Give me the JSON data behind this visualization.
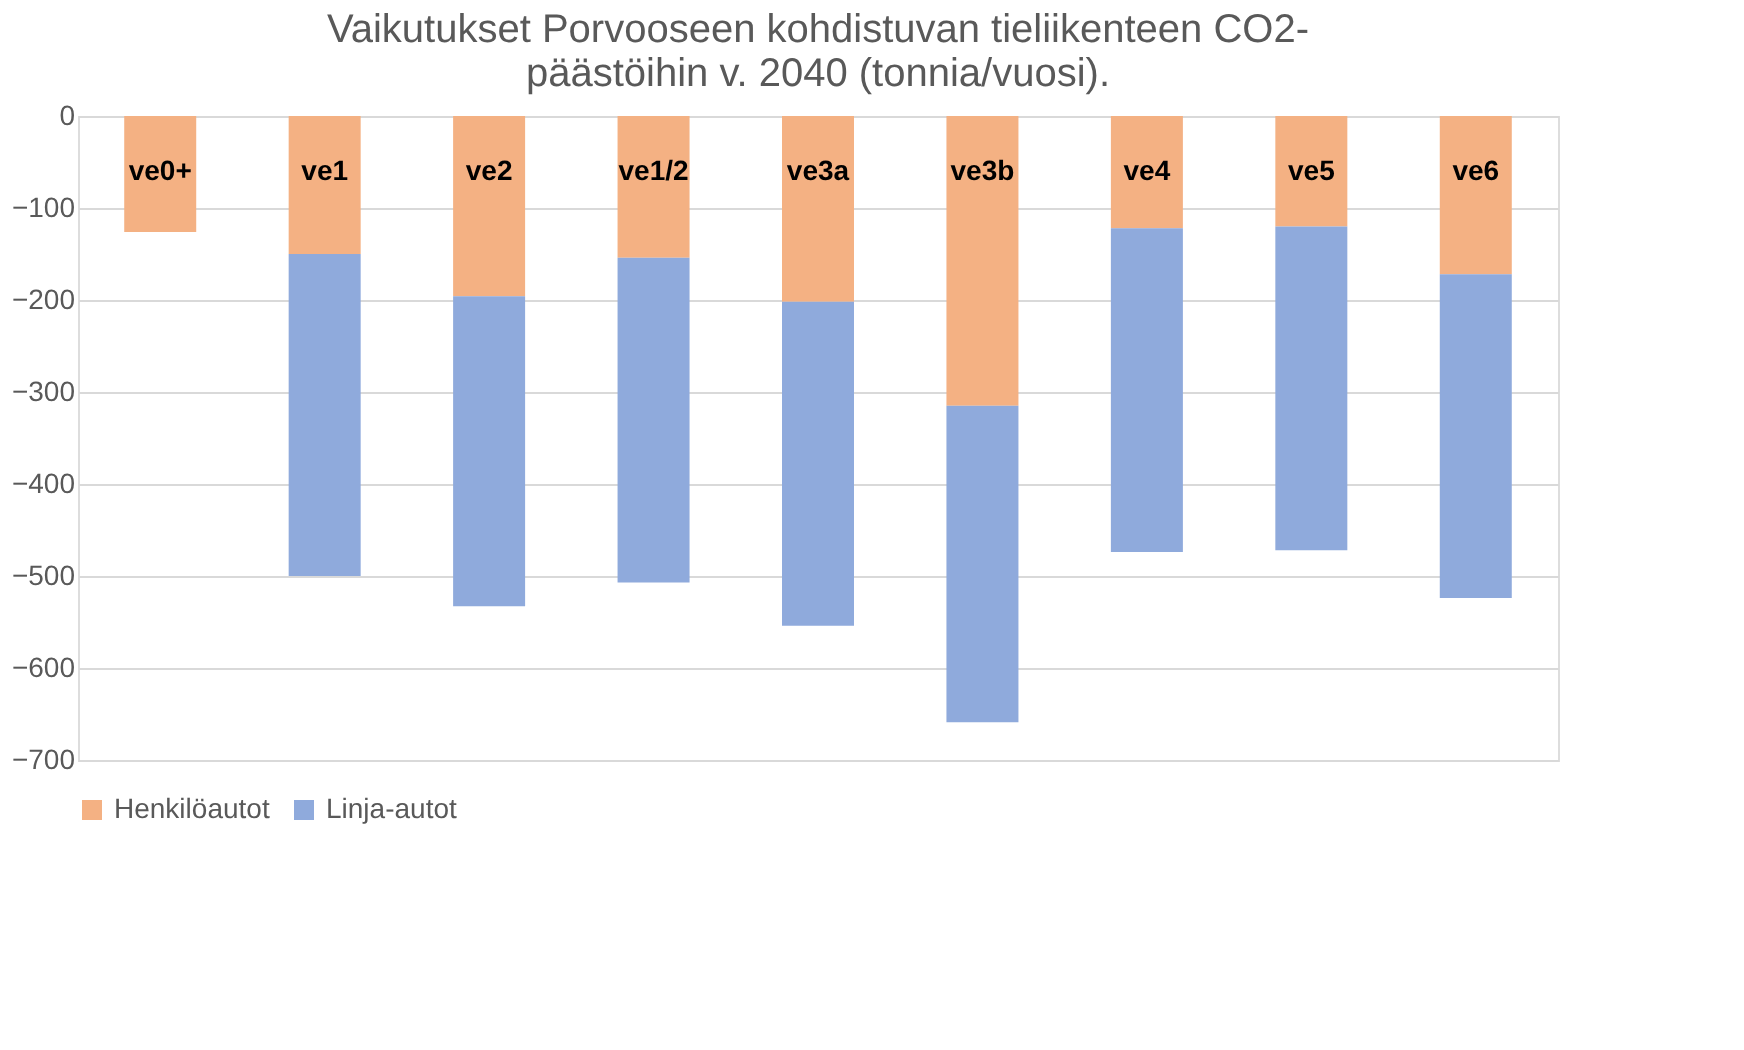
{
  "chart_data": {
    "type": "bar",
    "title": [
      "Vaikutukset Porvooseen kohdistuvan tieliikenteen CO2-",
      "päästöihin v. 2040 (tonnia/vuosi)."
    ],
    "categories": [
      "ve0+",
      "ve1",
      "ve2",
      "ve1/2",
      "ve3a",
      "ve3b",
      "ve4",
      "ve5",
      "ve6"
    ],
    "series": [
      {
        "name": "Henkilöautot",
        "color": "#f4b183",
        "values": [
          -126,
          -150,
          -196,
          -154,
          -202,
          -315,
          -122,
          -120,
          -172
        ]
      },
      {
        "name": "Linja-autot",
        "color": "#8faadc",
        "values": [
          0,
          -350,
          -337,
          -353,
          -352,
          -344,
          -352,
          -352,
          -352
        ]
      }
    ],
    "stacked": true,
    "ylim": [
      -700,
      0
    ],
    "yticks": [
      -700,
      -600,
      -500,
      -400,
      -300,
      -200,
      -100,
      0
    ],
    "grid": "y",
    "legend": "bottom"
  }
}
